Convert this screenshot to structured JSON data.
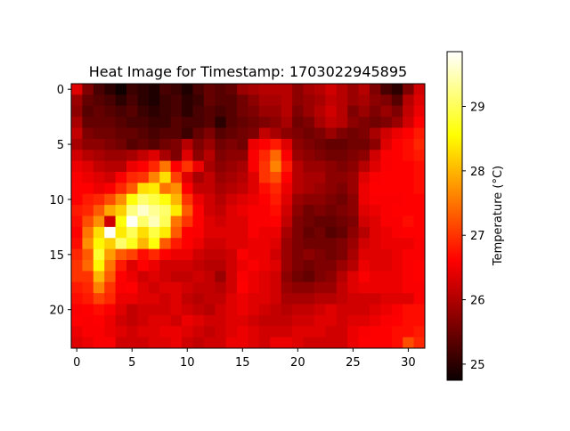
{
  "chart_data": {
    "type": "heatmap",
    "title": "Heat Image for Timestamp: 1703022945895",
    "xlabel": "",
    "ylabel": "",
    "x_ticks": [
      0,
      5,
      10,
      15,
      20,
      25,
      30
    ],
    "y_ticks": [
      0,
      5,
      10,
      15,
      20
    ],
    "rows": 24,
    "cols": 32,
    "colormap": "hot",
    "colorbar": {
      "label": "Temperature (°C)",
      "min": 24.75,
      "max": 29.85,
      "ticks": [
        25,
        26,
        27,
        28,
        29
      ]
    },
    "values": [
      [
        26.3,
        25.6,
        25.2,
        25.0,
        24.8,
        25.1,
        25.0,
        24.9,
        25.2,
        25.1,
        24.9,
        25.2,
        25.4,
        25.3,
        25.4,
        25.8,
        25.9,
        26.0,
        26.0,
        26.0,
        25.7,
        25.9,
        26.0,
        26.2,
        26.0,
        25.8,
        26.0,
        25.6,
        25.2,
        25.0,
        25.6,
        26.2
      ],
      [
        25.8,
        25.4,
        25.3,
        25.2,
        25.0,
        25.2,
        25.0,
        24.9,
        25.1,
        25.2,
        25.0,
        25.1,
        25.4,
        25.3,
        25.3,
        25.5,
        25.7,
        25.9,
        25.9,
        26.0,
        25.7,
        25.8,
        25.9,
        26.1,
        26.0,
        25.8,
        25.9,
        25.7,
        25.6,
        25.3,
        26.0,
        26.3
      ],
      [
        25.7,
        25.3,
        25.4,
        25.3,
        25.2,
        25.3,
        25.1,
        25.0,
        25.1,
        25.2,
        25.0,
        25.2,
        25.3,
        25.2,
        25.3,
        25.5,
        25.6,
        25.8,
        25.8,
        26.0,
        25.6,
        25.8,
        26.0,
        26.2,
        26.0,
        25.6,
        25.8,
        25.6,
        25.8,
        25.6,
        26.1,
        26.4
      ],
      [
        25.9,
        25.4,
        25.4,
        25.4,
        25.3,
        25.2,
        25.2,
        25.1,
        25.1,
        25.3,
        25.2,
        25.2,
        25.3,
        25.0,
        25.3,
        25.4,
        25.5,
        25.6,
        25.7,
        25.9,
        25.5,
        25.6,
        25.9,
        26.1,
        26.0,
        25.7,
        25.6,
        25.5,
        25.6,
        25.8,
        26.2,
        26.6
      ],
      [
        26.1,
        25.6,
        25.5,
        25.5,
        25.4,
        25.4,
        25.3,
        25.2,
        25.3,
        25.3,
        25.1,
        25.4,
        25.6,
        25.3,
        25.4,
        25.5,
        25.6,
        26.1,
        25.9,
        25.7,
        25.6,
        25.5,
        25.6,
        25.8,
        25.6,
        25.5,
        25.6,
        25.9,
        26.2,
        26.4,
        26.6,
        26.8
      ],
      [
        25.9,
        25.7,
        25.7,
        25.6,
        25.5,
        25.3,
        25.4,
        25.3,
        25.5,
        25.6,
        26.0,
        25.6,
        25.8,
        25.5,
        25.6,
        25.5,
        26.4,
        26.6,
        26.8,
        26.3,
        25.7,
        25.6,
        25.5,
        25.4,
        25.4,
        25.5,
        25.5,
        25.7,
        26.3,
        26.6,
        26.7,
        26.9
      ],
      [
        26.2,
        26.0,
        25.9,
        25.8,
        25.8,
        25.9,
        26.1,
        26.3,
        25.9,
        25.6,
        26.3,
        25.7,
        26.0,
        25.6,
        25.7,
        25.7,
        26.5,
        26.9,
        27.4,
        26.5,
        25.8,
        25.7,
        25.6,
        25.5,
        25.5,
        25.6,
        25.7,
        26.2,
        26.5,
        26.6,
        26.7,
        26.8
      ],
      [
        26.4,
        26.3,
        26.1,
        26.0,
        26.0,
        26.4,
        26.6,
        26.9,
        27.5,
        26.6,
        27.0,
        26.4,
        25.9,
        25.7,
        25.8,
        25.9,
        26.5,
        27.0,
        27.6,
        26.8,
        26.0,
        25.8,
        25.8,
        25.7,
        25.6,
        25.7,
        26.0,
        26.3,
        26.5,
        26.6,
        26.6,
        26.7
      ],
      [
        26.5,
        26.4,
        26.3,
        26.2,
        26.5,
        26.9,
        27.0,
        27.6,
        28.3,
        27.1,
        26.3,
        25.9,
        26.1,
        25.8,
        25.9,
        26.0,
        26.3,
        27.0,
        27.2,
        26.6,
        26.0,
        25.9,
        25.9,
        25.7,
        25.7,
        25.8,
        26.3,
        26.5,
        26.6,
        26.6,
        26.6,
        26.7
      ],
      [
        26.6,
        26.6,
        26.4,
        26.5,
        26.9,
        27.3,
        28.3,
        28.4,
        27.5,
        27.7,
        26.6,
        26.1,
        26.1,
        25.9,
        26.0,
        26.1,
        26.3,
        26.7,
        26.9,
        26.4,
        26.0,
        25.9,
        25.8,
        25.7,
        25.6,
        25.8,
        26.4,
        26.6,
        26.6,
        26.6,
        26.6,
        26.7
      ],
      [
        26.6,
        26.8,
        26.9,
        27.2,
        27.7,
        28.6,
        29.1,
        28.9,
        28.6,
        28.0,
        27.0,
        26.4,
        26.2,
        26.0,
        26.2,
        26.3,
        26.4,
        26.6,
        26.8,
        26.3,
        25.8,
        25.7,
        25.7,
        25.6,
        25.5,
        25.7,
        26.4,
        26.5,
        26.5,
        26.5,
        26.6,
        26.6
      ],
      [
        26.8,
        26.9,
        27.3,
        27.9,
        28.2,
        29.2,
        29.6,
        29.3,
        29.1,
        28.4,
        27.3,
        26.6,
        26.2,
        26.1,
        26.3,
        26.4,
        26.5,
        26.5,
        26.7,
        26.2,
        25.7,
        25.5,
        25.6,
        25.5,
        25.6,
        25.7,
        26.3,
        26.4,
        26.5,
        26.6,
        26.6,
        26.6
      ],
      [
        26.7,
        27.2,
        27.7,
        26.2,
        28.6,
        29.8,
        29.1,
        29.5,
        29.0,
        27.5,
        27.0,
        26.6,
        26.3,
        26.2,
        26.3,
        26.3,
        26.5,
        26.5,
        26.6,
        26.1,
        25.6,
        25.5,
        25.4,
        25.4,
        25.5,
        25.6,
        26.2,
        26.3,
        26.5,
        26.5,
        26.7,
        26.6
      ],
      [
        26.6,
        27.5,
        28.3,
        29.8,
        28.4,
        29.0,
        28.3,
        28.9,
        28.4,
        27.3,
        26.6,
        26.5,
        26.3,
        26.3,
        26.3,
        26.3,
        26.5,
        26.4,
        26.4,
        25.9,
        25.6,
        25.4,
        25.5,
        25.3,
        25.4,
        25.7,
        26.0,
        26.3,
        26.4,
        26.5,
        26.6,
        26.6
      ],
      [
        26.7,
        27.7,
        28.5,
        28.2,
        29.1,
        28.7,
        28.0,
        28.6,
        27.3,
        26.8,
        26.6,
        26.4,
        26.2,
        26.2,
        26.3,
        26.3,
        26.4,
        26.4,
        26.3,
        25.8,
        25.6,
        25.5,
        25.5,
        25.5,
        25.6,
        25.8,
        26.2,
        26.3,
        26.4,
        26.4,
        26.4,
        26.5
      ],
      [
        26.9,
        27.3,
        28.8,
        27.8,
        27.3,
        27.1,
        26.7,
        26.9,
        26.6,
        26.4,
        26.4,
        26.2,
        26.1,
        26.1,
        26.2,
        26.5,
        26.4,
        26.4,
        26.2,
        25.8,
        25.6,
        25.7,
        25.6,
        25.5,
        25.6,
        25.9,
        26.3,
        26.3,
        26.3,
        26.4,
        26.5,
        26.5
      ],
      [
        27.0,
        27.4,
        28.5,
        27.5,
        26.8,
        26.3,
        26.6,
        26.4,
        26.2,
        26.2,
        26.2,
        26.1,
        26.0,
        26.0,
        26.2,
        26.4,
        26.5,
        26.4,
        26.3,
        25.8,
        25.6,
        25.5,
        25.6,
        25.6,
        25.8,
        26.0,
        26.4,
        26.3,
        26.3,
        26.4,
        26.5,
        26.6
      ],
      [
        27.0,
        27.0,
        28.0,
        27.3,
        26.6,
        26.4,
        26.2,
        26.3,
        26.2,
        26.1,
        26.1,
        26.2,
        26.1,
        25.8,
        26.2,
        26.5,
        26.4,
        26.3,
        26.2,
        25.7,
        25.5,
        25.4,
        25.6,
        25.7,
        26.0,
        26.3,
        26.5,
        26.4,
        26.4,
        26.4,
        26.5,
        26.6
      ],
      [
        26.8,
        26.9,
        27.6,
        27.0,
        26.5,
        26.6,
        26.3,
        26.2,
        26.3,
        26.3,
        26.2,
        26.1,
        26.1,
        26.0,
        26.2,
        26.6,
        26.4,
        26.3,
        26.2,
        25.8,
        25.7,
        25.7,
        25.8,
        25.8,
        26.1,
        26.3,
        26.4,
        26.4,
        26.4,
        26.4,
        26.5,
        26.5
      ],
      [
        26.7,
        26.8,
        27.1,
        26.9,
        26.4,
        26.4,
        26.3,
        26.3,
        26.2,
        26.3,
        26.1,
        26.0,
        26.1,
        26.1,
        26.3,
        26.4,
        26.3,
        26.3,
        26.2,
        25.9,
        25.9,
        25.9,
        26.0,
        26.0,
        26.1,
        26.2,
        26.2,
        26.2,
        26.3,
        26.3,
        26.3,
        26.5
      ],
      [
        26.5,
        26.6,
        26.7,
        26.5,
        26.3,
        26.1,
        26.2,
        26.2,
        26.2,
        26.3,
        26.2,
        26.1,
        26.0,
        26.2,
        26.3,
        26.4,
        26.3,
        26.2,
        26.1,
        26.0,
        26.1,
        26.1,
        26.2,
        26.3,
        26.2,
        26.2,
        26.2,
        26.3,
        26.4,
        26.5,
        26.7,
        26.7
      ],
      [
        26.6,
        26.5,
        26.6,
        26.4,
        26.2,
        26.1,
        26.2,
        26.3,
        26.3,
        26.2,
        26.4,
        26.3,
        26.2,
        26.2,
        26.3,
        26.3,
        26.2,
        26.1,
        26.1,
        26.1,
        26.2,
        26.2,
        26.3,
        26.3,
        26.2,
        26.3,
        26.3,
        26.4,
        26.5,
        26.6,
        26.7,
        26.7
      ],
      [
        26.4,
        26.5,
        26.5,
        26.4,
        26.3,
        26.2,
        26.3,
        26.3,
        26.4,
        26.4,
        26.3,
        26.2,
        26.1,
        26.2,
        26.3,
        26.4,
        26.3,
        26.2,
        26.2,
        26.2,
        26.3,
        26.3,
        26.3,
        26.2,
        26.2,
        26.4,
        26.5,
        26.6,
        26.6,
        26.7,
        26.7,
        26.8
      ],
      [
        26.3,
        26.4,
        26.5,
        26.5,
        26.2,
        26.2,
        26.2,
        26.3,
        26.3,
        26.4,
        26.2,
        26.1,
        26.2,
        26.2,
        26.4,
        26.4,
        26.3,
        26.2,
        26.4,
        26.4,
        26.3,
        26.2,
        26.2,
        26.2,
        26.2,
        26.4,
        26.6,
        26.6,
        26.6,
        26.7,
        27.2,
        26.9
      ]
    ]
  }
}
